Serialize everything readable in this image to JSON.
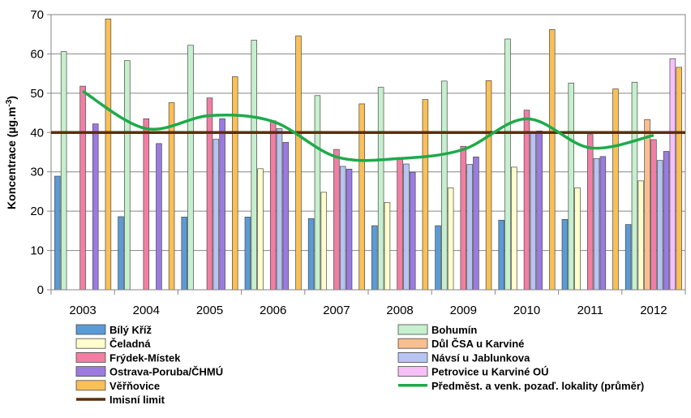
{
  "chart_data": {
    "type": "bar",
    "ylabel": "Koncentrace (µg.m",
    "ylabel_sup": "-3",
    "ylabel_end": ")",
    "ylim": [
      0,
      70
    ],
    "yticks": [
      0,
      10,
      20,
      30,
      40,
      50,
      60,
      70
    ],
    "grid": "horizontal",
    "categories": [
      "2003",
      "2004",
      "2005",
      "2006",
      "2007",
      "2008",
      "2009",
      "2010",
      "2011",
      "2012"
    ],
    "series": [
      {
        "name": "Bílý Kříž",
        "color": "#5b9bd5",
        "values": [
          28.9,
          18.6,
          18.5,
          18.5,
          18.1,
          16.3,
          16.3,
          17.7,
          17.9,
          16.6
        ]
      },
      {
        "name": "Bohumín",
        "color": "#c6efce",
        "values": [
          60.6,
          58.3,
          62.2,
          63.5,
          49.4,
          51.5,
          53.1,
          63.8,
          52.6,
          52.8
        ]
      },
      {
        "name": "Čeladná",
        "color": "#ffffcc",
        "values": [
          null,
          null,
          null,
          30.8,
          24.8,
          22.2,
          25.9,
          31.2,
          25.9,
          27.7
        ]
      },
      {
        "name": "Důl ČSA u Karviné",
        "color": "#fbbf8f",
        "values": [
          null,
          null,
          null,
          null,
          null,
          null,
          null,
          null,
          null,
          43.3
        ]
      },
      {
        "name": "Frýdek-Místek",
        "color": "#f27fa3",
        "values": [
          51.8,
          43.5,
          48.8,
          43.0,
          35.7,
          33.4,
          36.5,
          45.7,
          39.5,
          38.2
        ]
      },
      {
        "name": "Návsí u Jablunkova",
        "color": "#b7c3f0",
        "values": [
          null,
          null,
          38.3,
          41.0,
          31.4,
          32.0,
          31.9,
          39.9,
          33.4,
          32.9
        ]
      },
      {
        "name": "Ostrava-Poruba/ČHMÚ",
        "color": "#9b7be0",
        "values": [
          42.2,
          37.2,
          43.5,
          37.5,
          30.7,
          29.9,
          33.8,
          40.4,
          33.9,
          35.2
        ]
      },
      {
        "name": "Petrovice u Karviné OÚ",
        "color": "#f7bff7",
        "values": [
          null,
          null,
          null,
          null,
          null,
          null,
          null,
          null,
          null,
          58.8
        ]
      },
      {
        "name": "Věřňovice",
        "color": "#f9c057",
        "values": [
          68.9,
          47.6,
          54.2,
          64.6,
          47.3,
          48.4,
          53.2,
          66.2,
          51.1,
          56.6
        ]
      }
    ],
    "lines": [
      {
        "name": "Předměst. a venk. pozaď. lokality (průměr)",
        "color": "#1faa4a",
        "values": [
          50.5,
          41.0,
          44.3,
          42.8,
          33.8,
          33.4,
          35.7,
          43.5,
          36.1,
          39.3
        ]
      }
    ],
    "reference_line": {
      "name": "Imisní limit",
      "value": 40,
      "color": "#5c2e0b"
    },
    "legend": [
      {
        "label": "Bílý Kříž",
        "kind": "bar",
        "color": "#5b9bd5"
      },
      {
        "label": "Bohumín",
        "kind": "bar",
        "color": "#c6efce"
      },
      {
        "label": "Čeladná",
        "kind": "bar",
        "color": "#ffffcc"
      },
      {
        "label": "Důl ČSA u Karviné",
        "kind": "bar",
        "color": "#fbbf8f"
      },
      {
        "label": "Frýdek-Místek",
        "kind": "bar",
        "color": "#f27fa3"
      },
      {
        "label": "Návsí u Jablunkova",
        "kind": "bar",
        "color": "#b7c3f0"
      },
      {
        "label": "Ostrava-Poruba/ČHMÚ",
        "kind": "bar",
        "color": "#9b7be0"
      },
      {
        "label": "Petrovice u Karviné OÚ",
        "kind": "bar",
        "color": "#f7bff7"
      },
      {
        "label": "Věřňovice",
        "kind": "bar",
        "color": "#f9c057"
      },
      {
        "label": "Předměst. a venk. pozaď. lokality (průměr)",
        "kind": "line",
        "color": "#1faa4a"
      },
      {
        "label": "Imisní limit",
        "kind": "line",
        "color": "#5c2e0b"
      }
    ],
    "legend_position": "bottom"
  }
}
